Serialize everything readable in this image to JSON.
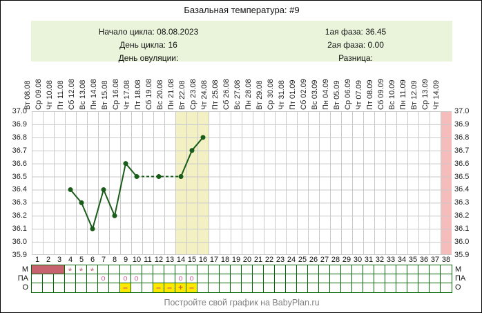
{
  "title": "Базальная температура: #9",
  "info": {
    "left": [
      "Начало цикла: 08.08.2023",
      "День цикла: 16",
      "День овуляции:"
    ],
    "right": [
      "1ая фаза: 36.45",
      "2ая фаза: 0.00",
      "Разница:"
    ]
  },
  "chart_data": {
    "type": "line",
    "title": "Базальная температура: #9",
    "ylabel": "",
    "xlabel": "",
    "ylim": [
      35.9,
      37.0
    ],
    "ytick_step": 0.1,
    "days_total": 38,
    "dates": [
      "Вт 08.08",
      "Ср 09.08",
      "Чт 10.08",
      "Пт 11.08",
      "Сб 12.08",
      "Вс 13.08",
      "Пн 14.08",
      "Вт 15.08",
      "Ср 16.08",
      "Чт 17.08",
      "Пт 18.08",
      "Сб 19.08",
      "Вс 20.08",
      "Пн 21.08",
      "Вт 22.08",
      "Ср 23.08",
      "Чт 24.08",
      "Пт 25.08",
      "Сб 26.08",
      "Вс 27.08",
      "Пн 28.08",
      "Вт 29.08",
      "Ср 30.08",
      "Чт 31.08",
      "Пт 01.09",
      "Сб 02.09",
      "Вс 03.09",
      "Пн 04.09",
      "Вт 05.09",
      "Ср 06.09",
      "Чт 07.09",
      "Пт 08.09",
      "Сб 09.09",
      "Вс 10.09",
      "Пн 11.09",
      "Вт 12.09",
      "Ср 13.09",
      "Чт 14.09"
    ],
    "points": [
      {
        "day": 4,
        "temp": 36.4
      },
      {
        "day": 5,
        "temp": 36.3
      },
      {
        "day": 6,
        "temp": 36.1
      },
      {
        "day": 7,
        "temp": 36.4
      },
      {
        "day": 8,
        "temp": 36.2
      },
      {
        "day": 9,
        "temp": 36.6
      },
      {
        "day": 10,
        "temp": 36.5
      },
      {
        "day": 12,
        "temp": 36.5
      },
      {
        "day": 14,
        "temp": 36.5
      },
      {
        "day": 15,
        "temp": 36.7
      },
      {
        "day": 16,
        "temp": 36.8
      }
    ],
    "segments": [
      {
        "days": [
          4,
          5,
          6,
          7,
          8,
          9,
          10
        ],
        "style": "solid"
      },
      {
        "days": [
          10,
          12,
          14
        ],
        "style": "dashed"
      },
      {
        "days": [
          14,
          15,
          16
        ],
        "style": "solid"
      }
    ],
    "bands": [
      {
        "from_day": 14,
        "to_day": 16,
        "color": "#f3f0c4"
      },
      {
        "from_day": 38,
        "to_day": 38,
        "color": "#f5bcbc"
      }
    ],
    "grid": true
  },
  "table": {
    "row_labels": [
      "М",
      "ПА",
      "О"
    ],
    "menstruation_fill": {
      "from": 1,
      "to": 3
    },
    "star_days": [
      4,
      5,
      6
    ],
    "pa_circle_days": [
      7,
      9,
      10,
      14,
      15
    ],
    "pa_circle_symbol": "о",
    "o_cells": [
      {
        "day": 9,
        "symbol": "–"
      },
      {
        "day": 12,
        "symbol": "–"
      },
      {
        "day": 13,
        "symbol": "–"
      },
      {
        "day": 14,
        "symbol": "+"
      },
      {
        "day": 15,
        "symbol": "–"
      }
    ]
  },
  "footer": "Постройте свой график на BabyPlan.ru",
  "colors": {
    "info_bg": "#e9f4db",
    "line": "#1a5c1a",
    "grid": "#c9c9c9",
    "menstruation_fill": "#c7636e",
    "star": "#cc6677",
    "circle": "#cc6699",
    "o_cell_bg": "#ffe800",
    "minus": "#cc5566",
    "plus": "#cc6633",
    "table_border": "#006600",
    "footer_text": "#808080"
  }
}
